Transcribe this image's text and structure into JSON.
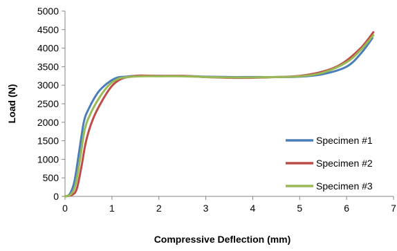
{
  "chart_data": {
    "type": "line",
    "title": "",
    "xlabel": "Compressive Deflection (mm)",
    "ylabel": "Load (N)",
    "xlim": [
      0,
      7
    ],
    "ylim": [
      0,
      5000
    ],
    "x_ticks": [
      "0",
      "1",
      "2",
      "3",
      "4",
      "5",
      "6",
      "7"
    ],
    "y_ticks": [
      "0",
      "500",
      "1000",
      "1500",
      "2000",
      "2500",
      "3000",
      "3500",
      "4000",
      "4500",
      "5000"
    ],
    "grid": false,
    "legend_position": "bottom-right",
    "series": [
      {
        "name": "Specimen #1",
        "color": "#4a7ebb",
        "points": [
          [
            0,
            0
          ],
          [
            0.1,
            60
          ],
          [
            0.2,
            400
          ],
          [
            0.3,
            1200
          ],
          [
            0.4,
            2000
          ],
          [
            0.5,
            2350
          ],
          [
            0.7,
            2800
          ],
          [
            0.9,
            3050
          ],
          [
            1.1,
            3200
          ],
          [
            1.3,
            3230
          ],
          [
            1.5,
            3250
          ],
          [
            2,
            3250
          ],
          [
            2.5,
            3250
          ],
          [
            3,
            3230
          ],
          [
            3.5,
            3220
          ],
          [
            4,
            3220
          ],
          [
            4.5,
            3220
          ],
          [
            5,
            3230
          ],
          [
            5.5,
            3300
          ],
          [
            6,
            3500
          ],
          [
            6.3,
            3850
          ],
          [
            6.55,
            4270
          ]
        ]
      },
      {
        "name": "Specimen #2",
        "color": "#be4b48",
        "points": [
          [
            0,
            0
          ],
          [
            0.15,
            40
          ],
          [
            0.25,
            200
          ],
          [
            0.35,
            800
          ],
          [
            0.45,
            1500
          ],
          [
            0.6,
            2100
          ],
          [
            0.8,
            2600
          ],
          [
            1,
            2980
          ],
          [
            1.2,
            3170
          ],
          [
            1.4,
            3230
          ],
          [
            1.6,
            3260
          ],
          [
            2,
            3250
          ],
          [
            2.5,
            3250
          ],
          [
            3,
            3220
          ],
          [
            3.5,
            3200
          ],
          [
            4,
            3200
          ],
          [
            4.5,
            3220
          ],
          [
            5,
            3250
          ],
          [
            5.5,
            3370
          ],
          [
            5.9,
            3580
          ],
          [
            6.3,
            4000
          ],
          [
            6.57,
            4430
          ]
        ]
      },
      {
        "name": "Specimen #3",
        "color": "#98b954",
        "points": [
          [
            0,
            0
          ],
          [
            0.12,
            50
          ],
          [
            0.22,
            300
          ],
          [
            0.32,
            1000
          ],
          [
            0.42,
            1800
          ],
          [
            0.55,
            2250
          ],
          [
            0.75,
            2700
          ],
          [
            0.95,
            3020
          ],
          [
            1.15,
            3180
          ],
          [
            1.35,
            3220
          ],
          [
            1.6,
            3240
          ],
          [
            2,
            3240
          ],
          [
            2.5,
            3240
          ],
          [
            3,
            3220
          ],
          [
            3.5,
            3210
          ],
          [
            4,
            3210
          ],
          [
            4.5,
            3220
          ],
          [
            5,
            3240
          ],
          [
            5.5,
            3340
          ],
          [
            6,
            3620
          ],
          [
            6.3,
            3950
          ],
          [
            6.57,
            4350
          ]
        ]
      }
    ]
  }
}
